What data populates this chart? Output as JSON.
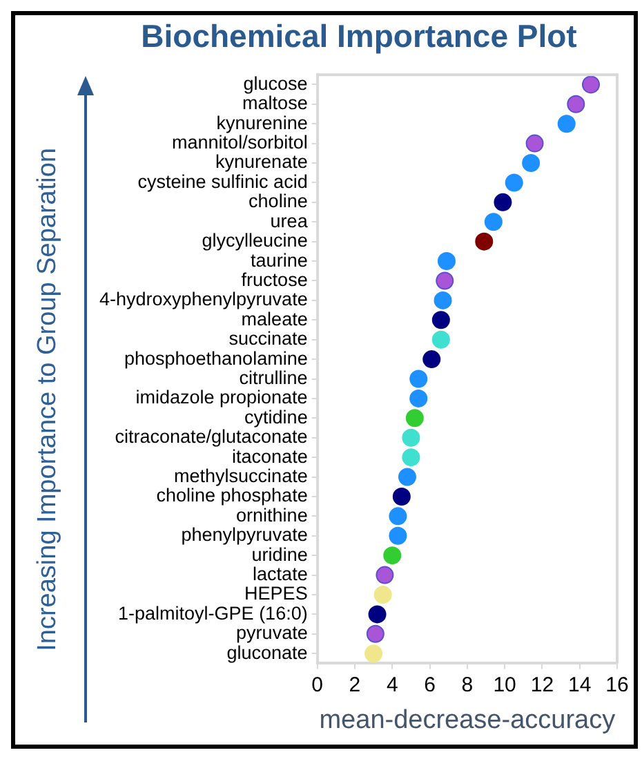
{
  "chart_data": {
    "type": "scatter",
    "title": "Biochemical Importance Plot",
    "xlabel": "mean-decrease-accuracy",
    "ylabel": "Increasing Importance to Group Separation",
    "orientation": "horizontal",
    "categories": [
      "glucose",
      "maltose",
      "kynurenine",
      "mannitol/sorbitol",
      "kynurenate",
      "cysteine sulfinic acid",
      "choline",
      "urea",
      "glycylleucine",
      "taurine",
      "fructose",
      "4-hydroxyphenylpyruvate",
      "maleate",
      "succinate",
      "phosphoethanolamine",
      "citrulline",
      "imidazole propionate",
      "cytidine",
      "citraconate/glutaconate",
      "itaconate",
      "methylsuccinate",
      "choline phosphate",
      "ornithine",
      "phenylpyruvate",
      "uridine",
      "lactate",
      "HEPES",
      "1-palmitoyl-GPE (16:0)",
      "pyruvate",
      "gluconate"
    ],
    "values": [
      14.6,
      13.8,
      13.3,
      11.6,
      11.4,
      10.5,
      9.9,
      9.4,
      8.9,
      6.9,
      6.8,
      6.7,
      6.6,
      6.6,
      6.1,
      5.4,
      5.4,
      5.2,
      5.0,
      5.0,
      4.8,
      4.5,
      4.3,
      4.3,
      4.0,
      3.6,
      3.5,
      3.2,
      3.1,
      3.0
    ],
    "colors": [
      "#a855d8",
      "#a855d8",
      "#1e90ff",
      "#a855d8",
      "#1e90ff",
      "#1e90ff",
      "#000080",
      "#1e90ff",
      "#800000",
      "#1e90ff",
      "#a855d8",
      "#1e90ff",
      "#000080",
      "#40e0d0",
      "#000080",
      "#1e90ff",
      "#1e90ff",
      "#32cd32",
      "#40e0d0",
      "#40e0d0",
      "#1e90ff",
      "#000080",
      "#1e90ff",
      "#1e90ff",
      "#32cd32",
      "#a855d8",
      "#f0e68c",
      "#000080",
      "#a855d8",
      "#f0e68c"
    ],
    "xlim": [
      0,
      16
    ],
    "xticks": [
      0,
      2,
      4,
      6,
      8,
      10,
      12,
      14,
      16
    ],
    "grid": false,
    "legend": false,
    "marker": "circle"
  }
}
